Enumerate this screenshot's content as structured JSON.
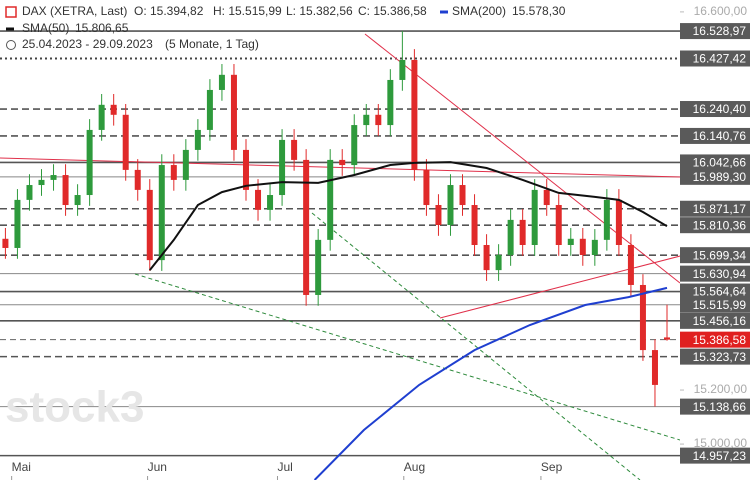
{
  "chart_data": {
    "type": "candlestick",
    "header": {
      "instrument": "DAX (XETRA, Last)",
      "ohlc": [
        "O: 15.394,82",
        "H: 15.515,99",
        "L: 15.382,56",
        "C: 15.386,58"
      ],
      "period": "25.04.2023 - 29.09.2023",
      "span": "(5 Monate, 1 Tag)"
    },
    "watermark": "stock3",
    "up_color": "#2e9a3c",
    "down_color": "#e02a2a",
    "open": [
      15760,
      15726,
      15904,
      15959,
      15978,
      15996,
      15885,
      15922,
      16163,
      16256,
      16219,
      16015,
      15941,
      15681,
      16033,
      15978,
      16089,
      16163,
      16311,
      16367,
      16089,
      15941,
      15867,
      15922,
      16126,
      16052,
      15552,
      15756,
      16052,
      16033,
      16181,
      16219,
      16181,
      16348,
      16422,
      16015,
      15885,
      15811,
      15959,
      15885,
      15737,
      15644,
      15700,
      15830,
      15737,
      15941,
      15885,
      15737,
      15760,
      15700,
      15756,
      15904,
      15737,
      15589,
      15348,
      15394.82
    ],
    "high": [
      15800,
      15944,
      15999,
      16018,
      16036,
      16036,
      15962,
      16203,
      16296,
      16296,
      16259,
      16055,
      15981,
      16073,
      16073,
      16129,
      16203,
      16351,
      16407,
      16407,
      16129,
      15981,
      15962,
      16166,
      16166,
      16092,
      15796,
      16092,
      16092,
      16221,
      16259,
      16259,
      16388,
      16529,
      16462,
      16055,
      15925,
      15999,
      15999,
      15925,
      15777,
      15740,
      15870,
      15870,
      15981,
      15981,
      15925,
      15800,
      15800,
      15796,
      15944,
      15944,
      15777,
      15629,
      15388,
      15515.99
    ],
    "low": [
      15686,
      15686,
      15864,
      15919,
      15938,
      15845,
      15845,
      15882,
      16123,
      16179,
      15975,
      15901,
      15641,
      15641,
      15938,
      15938,
      16049,
      16123,
      16271,
      16049,
      15901,
      15827,
      15827,
      15882,
      16012,
      15512,
      15512,
      15716,
      15993,
      15993,
      16141,
      16141,
      16141,
      16308,
      15975,
      15845,
      15771,
      15771,
      15845,
      15697,
      15604,
      15604,
      15660,
      15697,
      15697,
      15845,
      15697,
      15697,
      15660,
      15660,
      15716,
      15697,
      15549,
      15308,
      15139,
      15382.56
    ],
    "close": [
      15726,
      15904,
      15959,
      15978,
      15996,
      15885,
      15922,
      16163,
      16256,
      16219,
      16015,
      15941,
      15681,
      16033,
      15978,
      16089,
      16163,
      16311,
      16367,
      16089,
      15941,
      15867,
      15922,
      16126,
      16052,
      15552,
      15756,
      16052,
      16033,
      16181,
      16219,
      16181,
      16348,
      16422,
      16015,
      15885,
      15811,
      15959,
      15885,
      15737,
      15644,
      15700,
      15830,
      15737,
      15941,
      15885,
      15737,
      15760,
      15700,
      15756,
      15904,
      15737,
      15589,
      15348,
      15219,
      15386.58
    ],
    "series": [
      {
        "name": "SMA(200)",
        "value_label": "15.578,30",
        "color": "#1f3fd0",
        "x": [
          25.7,
          29.8,
          34.4,
          39,
          43.6,
          48.2,
          51.8,
          55
        ],
        "values": [
          14867,
          15052,
          15219,
          15348,
          15441,
          15515,
          15544,
          15578.3
        ]
      },
      {
        "name": "SMA(50)",
        "value_label": "15.806,65",
        "color": "#111111",
        "x": [
          12,
          14,
          16,
          18,
          20,
          23,
          26,
          29,
          32,
          34,
          37,
          40,
          43,
          46,
          49,
          51,
          53,
          55
        ],
        "values": [
          15644,
          15756,
          15885,
          15933,
          15956,
          15970,
          15967,
          15996,
          16033,
          16041,
          16044,
          16022,
          15978,
          15930,
          15915,
          15904,
          15859,
          15806.65
        ]
      }
    ],
    "levels": [
      {
        "value": 16528.97,
        "label": "16.528,97",
        "style": "solid"
      },
      {
        "value": 16427.42,
        "label": "16.427,42",
        "style": "dotted"
      },
      {
        "value": 16240.4,
        "label": "16.240,40",
        "style": "dashed"
      },
      {
        "value": 16140.76,
        "label": "16.140,76",
        "style": "dashed"
      },
      {
        "value": 16042.66,
        "label": "16.042,66",
        "style": "solid"
      },
      {
        "value": 15989.3,
        "label": "15.989,30",
        "style": "thin"
      },
      {
        "value": 15871.17,
        "label": "15.871,17",
        "style": "dashed"
      },
      {
        "value": 15810.36,
        "label": "15.810,36",
        "style": "dashed"
      },
      {
        "value": 15699.34,
        "label": "15.699,34",
        "style": "dashed"
      },
      {
        "value": 15630.94,
        "label": "15.630,94",
        "style": "thin"
      },
      {
        "value": 15564.64,
        "label": "15.564,64",
        "style": "solid"
      },
      {
        "value": 15515.99,
        "label": "15.515,99",
        "style": "thin"
      },
      {
        "value": 15456.16,
        "label": "15.456,16",
        "style": "solid"
      },
      {
        "value": 15386.58,
        "label": "15.386,58",
        "style": "current"
      },
      {
        "value": 15323.73,
        "label": "15.323,73",
        "style": "dashed"
      },
      {
        "value": 15138.66,
        "label": "15.138,66",
        "style": "thin"
      },
      {
        "value": 14957.23,
        "label": "14.957,23",
        "style": "solid"
      }
    ],
    "ylim": [
      14867,
      16644
    ],
    "yticks": [
      {
        "value": 16600,
        "label": "16.600,00"
      },
      {
        "value": 15200,
        "label": "15.200,00"
      },
      {
        "value": 15000,
        "label": "15.000,00"
      }
    ],
    "xlim": [
      -0.45,
      61.9
    ],
    "xticks": [
      {
        "value": 1.1,
        "label": "Mai"
      },
      {
        "value": 12.4,
        "label": "Jun"
      },
      {
        "value": 23.2,
        "label": "Jul"
      },
      {
        "value": 33.7,
        "label": "Aug"
      },
      {
        "value": 45.1,
        "label": "Sep"
      }
    ]
  }
}
